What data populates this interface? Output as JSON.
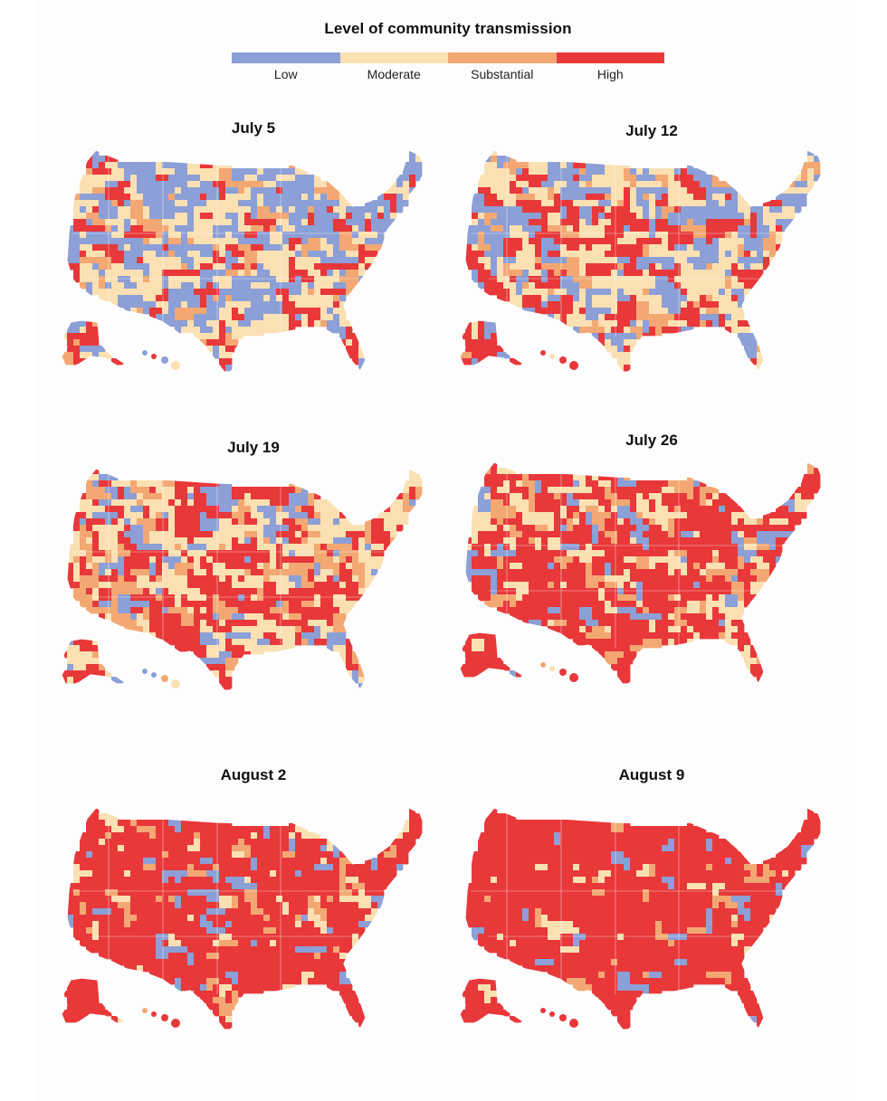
{
  "legend": {
    "title": "Level of community transmission",
    "levels": [
      {
        "label": "Low",
        "color": "#8c9fd6"
      },
      {
        "label": "Moderate",
        "color": "#fbe0b3"
      },
      {
        "label": "Substantial",
        "color": "#f3a873"
      },
      {
        "label": "High",
        "color": "#e8383a"
      }
    ]
  },
  "maps": [
    {
      "title": "July 5",
      "mix": {
        "Low": 0.34,
        "Moderate": 0.4,
        "Substantial": 0.1,
        "High": 0.16
      }
    },
    {
      "title": "July 12",
      "mix": {
        "Low": 0.28,
        "Moderate": 0.34,
        "Substantial": 0.12,
        "High": 0.26
      }
    },
    {
      "title": "July 19",
      "mix": {
        "Low": 0.18,
        "Moderate": 0.34,
        "Substantial": 0.16,
        "High": 0.32
      }
    },
    {
      "title": "July 26",
      "mix": {
        "Low": 0.1,
        "Moderate": 0.22,
        "Substantial": 0.14,
        "High": 0.54
      }
    },
    {
      "title": "August 2",
      "mix": {
        "Low": 0.06,
        "Moderate": 0.1,
        "Substantial": 0.12,
        "High": 0.72
      }
    },
    {
      "title": "August 9",
      "mix": {
        "Low": 0.04,
        "Moderate": 0.06,
        "Substantial": 0.06,
        "High": 0.84
      }
    }
  ]
}
